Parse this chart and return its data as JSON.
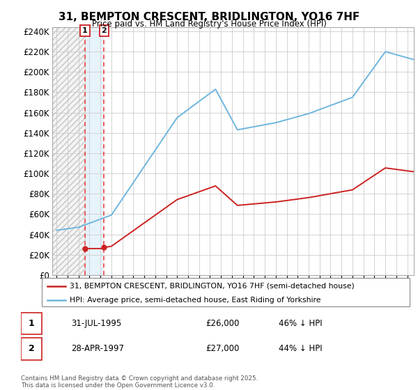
{
  "title": "31, BEMPTON CRESCENT, BRIDLINGTON, YO16 7HF",
  "subtitle": "Price paid vs. HM Land Registry's House Price Index (HPI)",
  "legend_line1": "31, BEMPTON CRESCENT, BRIDLINGTON, YO16 7HF (semi-detached house)",
  "legend_line2": "HPI: Average price, semi-detached house, East Riding of Yorkshire",
  "footnote": "Contains HM Land Registry data © Crown copyright and database right 2025.\nThis data is licensed under the Open Government Licence v3.0.",
  "table": [
    {
      "num": "1",
      "date": "31-JUL-1995",
      "price": "£26,000",
      "hpi": "46% ↓ HPI"
    },
    {
      "num": "2",
      "date": "28-APR-1997",
      "price": "£27,000",
      "hpi": "44% ↓ HPI"
    }
  ],
  "sale_dates": [
    1995.583,
    1997.333
  ],
  "sale_prices": [
    26000,
    27000
  ],
  "hpi_color": "#6eb6de",
  "price_color": "#cc2222",
  "vline_color": "#ee3333",
  "ylim": [
    0,
    244000
  ],
  "yticks": [
    0,
    20000,
    40000,
    60000,
    80000,
    100000,
    120000,
    140000,
    160000,
    180000,
    200000,
    220000,
    240000
  ],
  "xlim_left": 1992.6,
  "xlim_right": 2025.6
}
